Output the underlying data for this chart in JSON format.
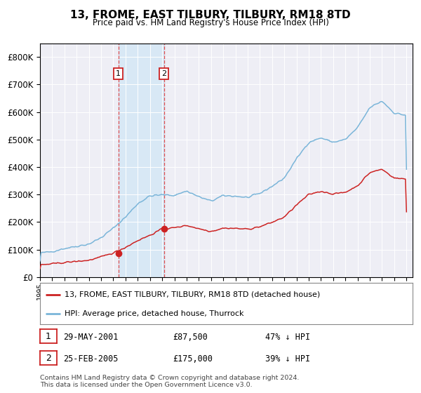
{
  "title": "13, FROME, EAST TILBURY, TILBURY, RM18 8TD",
  "subtitle": "Price paid vs. HM Land Registry's House Price Index (HPI)",
  "legend_line1": "13, FROME, EAST TILBURY, TILBURY, RM18 8TD (detached house)",
  "legend_line2": "HPI: Average price, detached house, Thurrock",
  "transaction1_date": "29-MAY-2001",
  "transaction1_price": 87500,
  "transaction1_label": "47% ↓ HPI",
  "transaction2_date": "25-FEB-2005",
  "transaction2_price": 175000,
  "transaction2_label": "39% ↓ HPI",
  "footer": "Contains HM Land Registry data © Crown copyright and database right 2024.\nThis data is licensed under the Open Government Licence v3.0.",
  "hpi_color": "#7ab5d9",
  "price_color": "#cc2222",
  "background_color": "#ffffff",
  "plot_bg_color": "#eeeef5",
  "shade_color": "#d8e8f5",
  "transaction1_x": 2001.41,
  "transaction2_x": 2005.15,
  "ylim_max": 850000,
  "xlim_start": 1995.0,
  "xlim_end": 2025.5,
  "hpi_key_years": [
    1995,
    1996,
    1997,
    1998,
    1999,
    2000,
    2001,
    2002,
    2003,
    2004,
    2005,
    2006,
    2007,
    2008,
    2009,
    2010,
    2011,
    2012,
    2013,
    2014,
    2015,
    2016,
    2017,
    2018,
    2019,
    2020,
    2021,
    2022,
    2023,
    2024,
    2025
  ],
  "hpi_key_vals": [
    87000,
    93000,
    104000,
    112000,
    120000,
    143000,
    178000,
    218000,
    267000,
    295000,
    299000,
    297000,
    313000,
    292000,
    276000,
    296000,
    294000,
    289000,
    304000,
    330000,
    360000,
    430000,
    490000,
    506000,
    490000,
    500000,
    543000,
    616000,
    640000,
    596000,
    588000
  ],
  "prop_key_years": [
    1995,
    1996,
    1997,
    1998,
    1999,
    2000,
    2001,
    2002,
    2003,
    2004,
    2005,
    2006,
    2007,
    2008,
    2009,
    2010,
    2011,
    2012,
    2013,
    2014,
    2015,
    2016,
    2017,
    2018,
    2019,
    2020,
    2021,
    2022,
    2023,
    2024,
    2025
  ],
  "prop_key_vals": [
    44000,
    48000,
    53000,
    57000,
    61000,
    73000,
    88000,
    108000,
    133000,
    152000,
    175000,
    179000,
    188000,
    176000,
    166000,
    178000,
    177000,
    174000,
    183000,
    199000,
    218000,
    262000,
    300000,
    312000,
    302000,
    308000,
    332000,
    380000,
    392000,
    360000,
    356000
  ]
}
